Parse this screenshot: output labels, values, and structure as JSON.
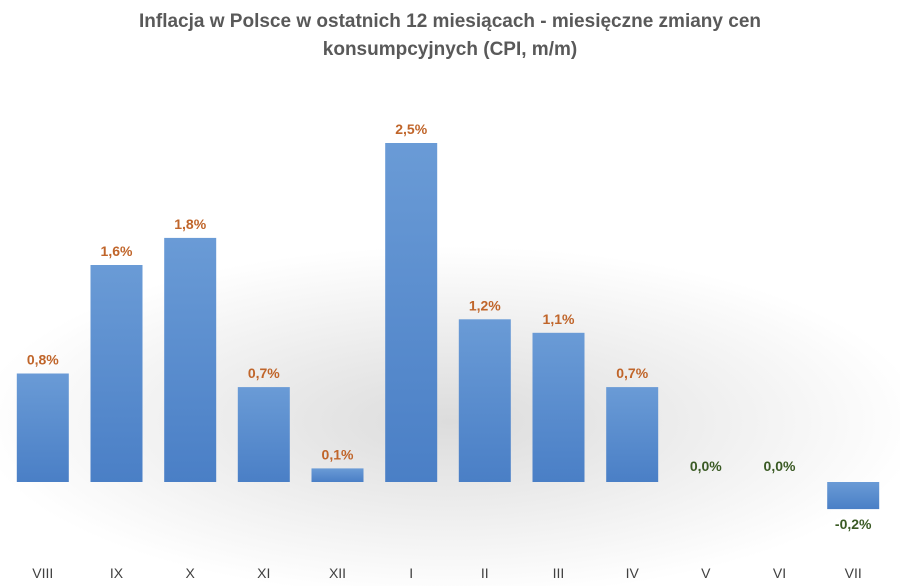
{
  "chart_data": {
    "type": "bar",
    "title_lines": [
      "Inflacja w Polsce w ostatnich 12 miesiącach - miesięczne zmiany cen",
      "konsumpcyjnych (CPI, m/m)"
    ],
    "categories": [
      "VIII",
      "IX",
      "X",
      "XI",
      "XII",
      "I",
      "II",
      "III",
      "IV",
      "V",
      "VI",
      "VII"
    ],
    "values": [
      0.8,
      1.6,
      1.8,
      0.7,
      0.1,
      2.5,
      1.2,
      1.1,
      0.7,
      0.0,
      0.0,
      -0.2
    ],
    "data_labels": [
      "0,8%",
      "1,6%",
      "1,8%",
      "0,7%",
      "0,1%",
      "2,5%",
      "1,2%",
      "1,1%",
      "0,7%",
      "0,0%",
      "0,0%",
      "-0,2%"
    ],
    "ylim": [
      -0.2,
      2.5
    ],
    "grid": false,
    "colors": {
      "bar": "#5b8fd0",
      "label_positive": "#c0652a",
      "label_nonpositive": "#3a5a24",
      "title": "#595959",
      "tick": "#404040"
    }
  }
}
